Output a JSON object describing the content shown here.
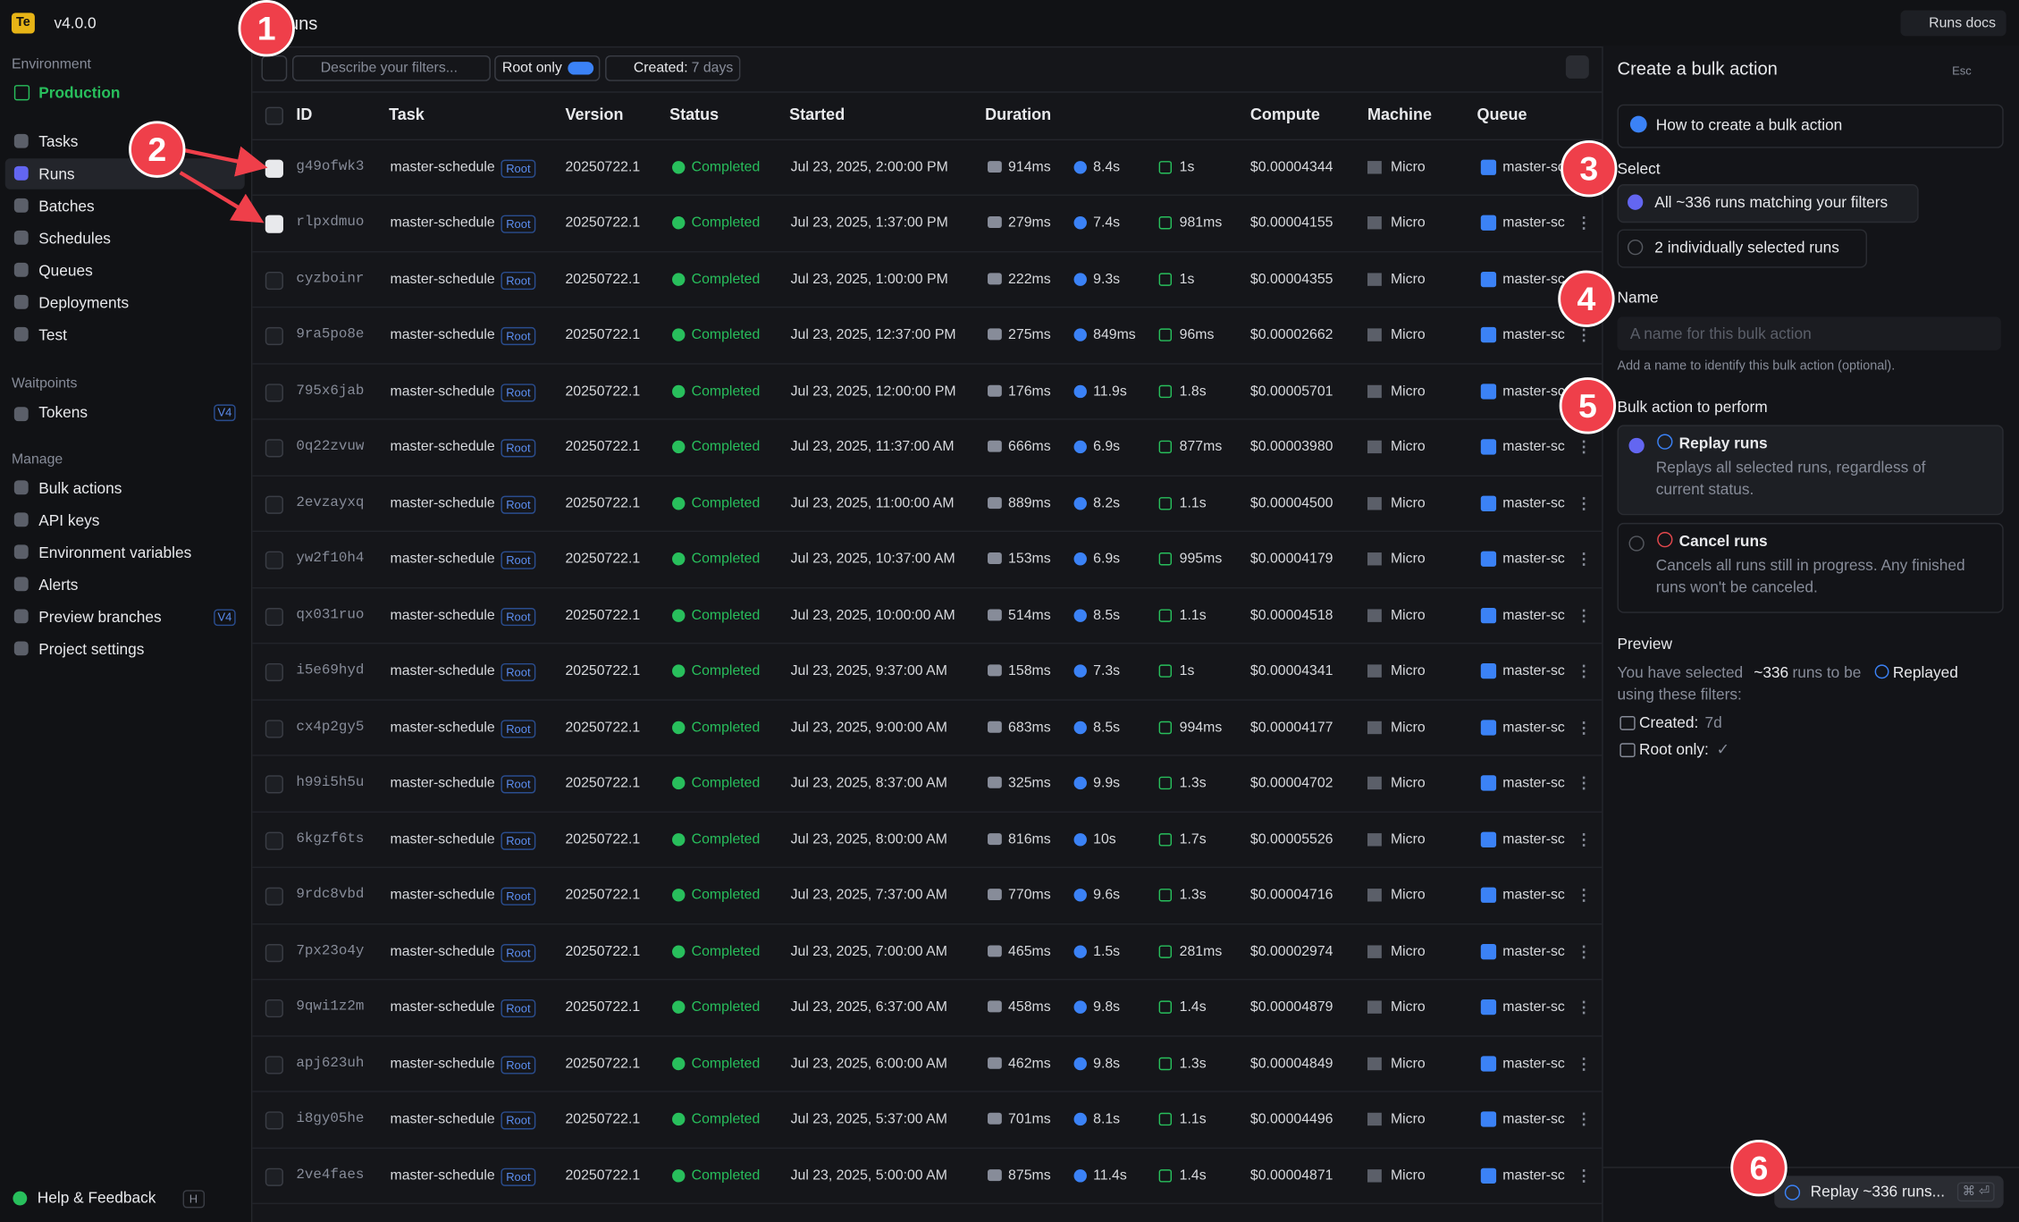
{
  "sidebar": {
    "org_badge": "Te",
    "version": "v4.0.0",
    "environment_label": "Environment",
    "environment": "Production",
    "nav": [
      "Tasks",
      "Runs",
      "Batches",
      "Schedules",
      "Queues",
      "Deployments",
      "Test"
    ],
    "waitpoints_label": "Waitpoints",
    "waitpoints_nav": [
      {
        "label": "Tokens",
        "badge": "V4"
      }
    ],
    "manage_label": "Manage",
    "manage_nav": [
      {
        "label": "Bulk actions"
      },
      {
        "label": "API keys"
      },
      {
        "label": "Environment variables"
      },
      {
        "label": "Alerts"
      },
      {
        "label": "Preview branches",
        "badge": "V4"
      },
      {
        "label": "Project settings"
      }
    ],
    "help": "Help & Feedback",
    "help_key": "H"
  },
  "header": {
    "title": "Runs",
    "docs": "Runs docs"
  },
  "toolbar": {
    "search_placeholder": "Describe your filters...",
    "root_only": "Root only",
    "created_label": "Created:",
    "created_value": "7 days"
  },
  "table": {
    "columns": [
      "ID",
      "Task",
      "Version",
      "Status",
      "Started",
      "Duration",
      "Compute",
      "Machine",
      "Queue"
    ],
    "selected_rows": [
      0,
      1
    ],
    "rows": [
      [
        "g49ofwk3",
        "master-schedule",
        "Root",
        "20250722.1",
        "Completed",
        "Jul 23, 2025, 2:00:00 PM",
        "914ms",
        "8.4s",
        "1s",
        "$0.00004344",
        "Micro",
        "master-schedule"
      ],
      [
        "rlpxdmuo",
        "master-schedule",
        "Root",
        "20250722.1",
        "Completed",
        "Jul 23, 2025, 1:37:00 PM",
        "279ms",
        "7.4s",
        "981ms",
        "$0.00004155",
        "Micro",
        "master-schedule"
      ],
      [
        "cyzboinr",
        "master-schedule",
        "Root",
        "20250722.1",
        "Completed",
        "Jul 23, 2025, 1:00:00 PM",
        "222ms",
        "9.3s",
        "1s",
        "$0.00004355",
        "Micro",
        "master-schedule"
      ],
      [
        "9ra5po8e",
        "master-schedule",
        "Root",
        "20250722.1",
        "Completed",
        "Jul 23, 2025, 12:37:00 PM",
        "275ms",
        "849ms",
        "96ms",
        "$0.00002662",
        "Micro",
        "master-schedule"
      ],
      [
        "795x6jab",
        "master-schedule",
        "Root",
        "20250722.1",
        "Completed",
        "Jul 23, 2025, 12:00:00 PM",
        "176ms",
        "11.9s",
        "1.8s",
        "$0.00005701",
        "Micro",
        "master-schedule"
      ],
      [
        "0q22zvuw",
        "master-schedule",
        "Root",
        "20250722.1",
        "Completed",
        "Jul 23, 2025, 11:37:00 AM",
        "666ms",
        "6.9s",
        "877ms",
        "$0.00003980",
        "Micro",
        "master-schedule"
      ],
      [
        "2evzayxq",
        "master-schedule",
        "Root",
        "20250722.1",
        "Completed",
        "Jul 23, 2025, 11:00:00 AM",
        "889ms",
        "8.2s",
        "1.1s",
        "$0.00004500",
        "Micro",
        "master-schedule"
      ],
      [
        "yw2f10h4",
        "master-schedule",
        "Root",
        "20250722.1",
        "Completed",
        "Jul 23, 2025, 10:37:00 AM",
        "153ms",
        "6.9s",
        "995ms",
        "$0.00004179",
        "Micro",
        "master-schedule"
      ],
      [
        "qx031ruo",
        "master-schedule",
        "Root",
        "20250722.1",
        "Completed",
        "Jul 23, 2025, 10:00:00 AM",
        "514ms",
        "8.5s",
        "1.1s",
        "$0.00004518",
        "Micro",
        "master-schedule"
      ],
      [
        "i5e69hyd",
        "master-schedule",
        "Root",
        "20250722.1",
        "Completed",
        "Jul 23, 2025, 9:37:00 AM",
        "158ms",
        "7.3s",
        "1s",
        "$0.00004341",
        "Micro",
        "master-schedule"
      ],
      [
        "cx4p2gy5",
        "master-schedule",
        "Root",
        "20250722.1",
        "Completed",
        "Jul 23, 2025, 9:00:00 AM",
        "683ms",
        "8.5s",
        "994ms",
        "$0.00004177",
        "Micro",
        "master-schedule"
      ],
      [
        "h99i5h5u",
        "master-schedule",
        "Root",
        "20250722.1",
        "Completed",
        "Jul 23, 2025, 8:37:00 AM",
        "325ms",
        "9.9s",
        "1.3s",
        "$0.00004702",
        "Micro",
        "master-schedule"
      ],
      [
        "6kgzf6ts",
        "master-schedule",
        "Root",
        "20250722.1",
        "Completed",
        "Jul 23, 2025, 8:00:00 AM",
        "816ms",
        "10s",
        "1.7s",
        "$0.00005526",
        "Micro",
        "master-schedule"
      ],
      [
        "9rdc8vbd",
        "master-schedule",
        "Root",
        "20250722.1",
        "Completed",
        "Jul 23, 2025, 7:37:00 AM",
        "770ms",
        "9.6s",
        "1.3s",
        "$0.00004716",
        "Micro",
        "master-schedule"
      ],
      [
        "7px23o4y",
        "master-schedule",
        "Root",
        "20250722.1",
        "Completed",
        "Jul 23, 2025, 7:00:00 AM",
        "465ms",
        "1.5s",
        "281ms",
        "$0.00002974",
        "Micro",
        "master-schedule"
      ],
      [
        "9qwi1z2m",
        "master-schedule",
        "Root",
        "20250722.1",
        "Completed",
        "Jul 23, 2025, 6:37:00 AM",
        "458ms",
        "9.8s",
        "1.4s",
        "$0.00004879",
        "Micro",
        "master-schedule"
      ],
      [
        "apj623uh",
        "master-schedule",
        "Root",
        "20250722.1",
        "Completed",
        "Jul 23, 2025, 6:00:00 AM",
        "462ms",
        "9.8s",
        "1.3s",
        "$0.00004849",
        "Micro",
        "master-schedule"
      ],
      [
        "i8gy05he",
        "master-schedule",
        "Root",
        "20250722.1",
        "Completed",
        "Jul 23, 2025, 5:37:00 AM",
        "701ms",
        "8.1s",
        "1.1s",
        "$0.00004496",
        "Micro",
        "master-schedule"
      ],
      [
        "2ve4faes",
        "master-schedule",
        "Root",
        "20250722.1",
        "Completed",
        "Jul 23, 2025, 5:00:00 AM",
        "875ms",
        "11.4s",
        "1.4s",
        "$0.00004871",
        "Micro",
        "master-schedule"
      ]
    ]
  },
  "panel": {
    "title": "Create a bulk action",
    "esc": "Esc",
    "how_to": "How to create a bulk action",
    "select_label": "Select",
    "select_options": [
      "All ~336 runs matching your filters",
      "2 individually selected runs"
    ],
    "name_label": "Name",
    "name_placeholder": "A name for this bulk action",
    "name_help": "Add a name to identify this bulk action (optional).",
    "action_label": "Bulk action to perform",
    "actions": [
      {
        "title": "Replay runs",
        "desc": [
          "Replays all selected runs, regardless of",
          "current status."
        ]
      },
      {
        "title": "Cancel runs",
        "desc": [
          "Cancels all runs still in progress. Any finished",
          "runs won't be canceled."
        ]
      }
    ],
    "preview_label": "Preview",
    "preview_text": [
      "You have selected ",
      "~336",
      " runs to be ",
      "Replayed",
      "using these filters:"
    ],
    "filters": [
      [
        "Created:",
        "7d"
      ],
      [
        "Root only:",
        "✓"
      ]
    ],
    "button": "Replay ~336 runs...",
    "button_key": "⌘ ⏎"
  },
  "annotations": [
    "1",
    "2",
    "3",
    "4",
    "5",
    "6"
  ]
}
